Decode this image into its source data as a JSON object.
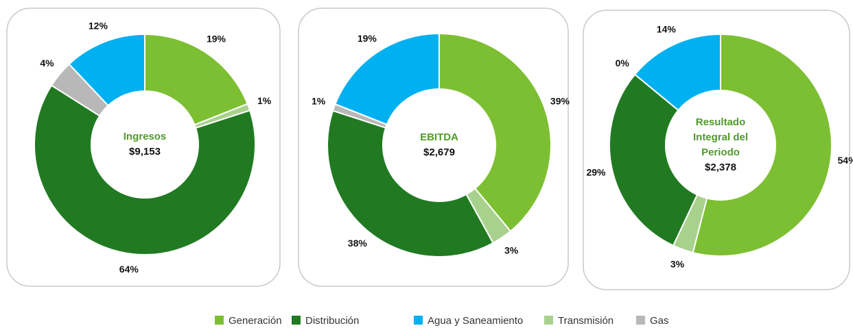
{
  "chart_data": [
    {
      "type": "pie",
      "center_label": "Ingresos",
      "center_value": "$9,153",
      "categories": [
        "Generación",
        "Transmisión",
        "Distribución",
        "Gas",
        "Agua y Saneamiento"
      ],
      "values": [
        19,
        1,
        64,
        4,
        12
      ],
      "value_labels": [
        "19%",
        "1%",
        "64%",
        "4%",
        "12%"
      ],
      "colors": [
        "#7dbf32",
        "#a9d18e",
        "#217a22",
        "#b8b8b8",
        "#00b0f0"
      ]
    },
    {
      "type": "pie",
      "center_label": "EBITDA",
      "center_value": "$2,679",
      "categories": [
        "Generación",
        "Transmisión",
        "Distribución",
        "Gas",
        "Agua y Saneamiento"
      ],
      "values": [
        39,
        3,
        38,
        1,
        19
      ],
      "value_labels": [
        "39%",
        "3%",
        "38%",
        "1%",
        "19%"
      ],
      "colors": [
        "#7dbf32",
        "#a9d18e",
        "#217a22",
        "#b8b8b8",
        "#00b0f0"
      ]
    },
    {
      "type": "pie",
      "center_label": "Resultado Integral del Periodo",
      "center_value": "$2,378",
      "categories": [
        "Generación",
        "Transmisión",
        "Distribución",
        "Gas",
        "Agua y Saneamiento"
      ],
      "values": [
        54,
        3,
        29,
        0,
        14
      ],
      "value_labels": [
        "54%",
        "3%",
        "29%",
        "0%",
        "14%"
      ],
      "colors": [
        "#7dbf32",
        "#a9d18e",
        "#217a22",
        "#b8b8b8",
        "#00b0f0"
      ]
    }
  ]
}
